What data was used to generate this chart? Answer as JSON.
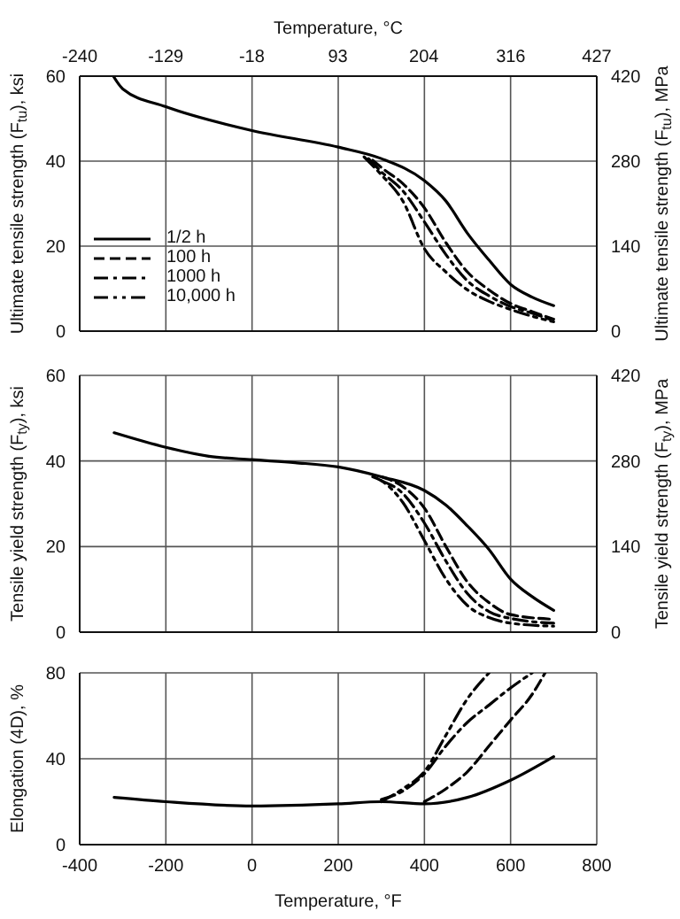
{
  "chart_data": [
    {
      "type": "line",
      "xlabel": null,
      "x2label": "Temperature, °C",
      "ylabel": "Ultimate tensile strength (F$_{tu}$), ksi",
      "y2label": "Ultimate tensile strength (F$_{tu}$), MPa",
      "xlim": [
        -400,
        800
      ],
      "xticks": [
        -400,
        -200,
        0,
        200,
        400,
        600,
        800
      ],
      "x2lim": [
        -240,
        427
      ],
      "x2ticks": [
        -240,
        -129,
        -18,
        93,
        204,
        316,
        427
      ],
      "ylim": [
        0,
        60
      ],
      "yticks": [
        0,
        20,
        40,
        60
      ],
      "y2lim": [
        0,
        420
      ],
      "y2ticks": [
        0,
        140,
        280,
        420
      ],
      "grid": true,
      "legend": "bottom left",
      "tick_labels": "y",
      "series": [
        {
          "name": "1/2 h",
          "color": "#000000",
          "line_style": "solid",
          "x": [
            -322,
            -300,
            -200,
            0,
            200,
            300,
            400,
            450,
            500,
            550,
            600,
            650,
            700
          ],
          "values": [
            60,
            57,
            52.8,
            47.2,
            43.3,
            40.6,
            35.4,
            30.6,
            23,
            16.7,
            11,
            8,
            6
          ]
        },
        {
          "name": "100 h",
          "color": "#000000",
          "line_style": "dashed",
          "x": [
            280,
            300,
            350,
            400,
            450,
            500,
            550,
            600,
            650,
            700
          ],
          "values": [
            40.2,
            38.5,
            34.7,
            29,
            20.8,
            13.9,
            9.7,
            6.5,
            4.6,
            2.8
          ]
        },
        {
          "name": "1000 h",
          "color": "#000000",
          "line_style": "dashdot",
          "x": [
            270,
            300,
            350,
            400,
            450,
            500,
            550,
            600,
            650,
            700
          ],
          "values": [
            40.6,
            37.5,
            33,
            25.7,
            18,
            11.8,
            8.3,
            5.8,
            4.2,
            2.5
          ]
        },
        {
          "name": "10,000 h",
          "color": "#000000",
          "line_style": "dashdotdot",
          "x": [
            260,
            300,
            350,
            400,
            450,
            500,
            550,
            600,
            650,
            700
          ],
          "values": [
            41,
            36.8,
            30.6,
            19.4,
            13.9,
            9.7,
            7,
            5.1,
            3.5,
            2.2
          ]
        }
      ]
    },
    {
      "type": "line",
      "ylabel": "Tensile yield strength (F$_{ty}$), ksi",
      "y2label": "Tensile yield strength (F$_{ty}$), MPa",
      "xlim": [
        -400,
        800
      ],
      "xticks": [
        -400,
        -200,
        0,
        200,
        400,
        600,
        800
      ],
      "ylim": [
        0,
        60
      ],
      "yticks": [
        0,
        20,
        40,
        60
      ],
      "y2lim": [
        0,
        420
      ],
      "y2ticks": [
        0,
        140,
        280,
        420
      ],
      "grid": true,
      "tick_labels": "y",
      "series": [
        {
          "color": "#000000",
          "line_style": "solid",
          "x": [
            -320,
            -200,
            -100,
            0,
            100,
            200,
            300,
            400,
            450,
            500,
            550,
            600,
            650,
            700
          ],
          "values": [
            46.6,
            43.2,
            41.1,
            40.3,
            39.6,
            38.6,
            36.3,
            33.1,
            29.7,
            24.8,
            19.3,
            12.4,
            8.3,
            5.1
          ]
        },
        {
          "color": "#000000",
          "line_style": "dashed",
          "x": [
            300,
            350,
            400,
            450,
            500,
            550,
            600,
            700
          ],
          "values": [
            36.3,
            34,
            29,
            20,
            11.7,
            6.9,
            4.1,
            3
          ]
        },
        {
          "color": "#000000",
          "line_style": "dashdot",
          "x": [
            300,
            350,
            400,
            450,
            500,
            550,
            600,
            700
          ],
          "values": [
            35.4,
            32.4,
            25.5,
            16.6,
            9,
            4.8,
            3.2,
            2.1
          ]
        },
        {
          "color": "#000000",
          "line_style": "dashdotdot",
          "x": [
            280,
            300,
            350,
            400,
            450,
            500,
            550,
            600,
            700
          ],
          "values": [
            36.3,
            35.4,
            30.3,
            21.4,
            12.4,
            6.2,
            3.4,
            2.1,
            1.4
          ]
        }
      ]
    },
    {
      "type": "line",
      "xlabel": "Temperature, °F",
      "ylabel": "Elongation (4D), %",
      "xlim": [
        -400,
        800
      ],
      "xticks": [
        -400,
        -200,
        0,
        200,
        400,
        600,
        800
      ],
      "ylim": [
        0,
        80
      ],
      "yticks": [
        0,
        40,
        80
      ],
      "grid": true,
      "series": [
        {
          "color": "#000000",
          "line_style": "solid",
          "x": [
            -320,
            -200,
            0,
            200,
            300,
            400,
            500,
            600,
            700
          ],
          "values": [
            22,
            20,
            18,
            19,
            20,
            19,
            22,
            30,
            41
          ]
        },
        {
          "color": "#000000",
          "line_style": "dashed",
          "x": [
            400,
            450,
            500,
            550,
            600,
            650,
            680
          ],
          "values": [
            20,
            26,
            34,
            46,
            58,
            70,
            80
          ]
        },
        {
          "color": "#000000",
          "line_style": "dashdot",
          "x": [
            300,
            350,
            400,
            450,
            500,
            550,
            600,
            650
          ],
          "values": [
            21,
            25,
            33,
            46,
            57,
            65,
            73,
            80
          ]
        },
        {
          "color": "#000000",
          "line_style": "dashdotdot",
          "x": [
            300,
            350,
            400,
            450,
            500,
            550
          ],
          "values": [
            20,
            26,
            34,
            51,
            68,
            80
          ]
        }
      ]
    }
  ]
}
